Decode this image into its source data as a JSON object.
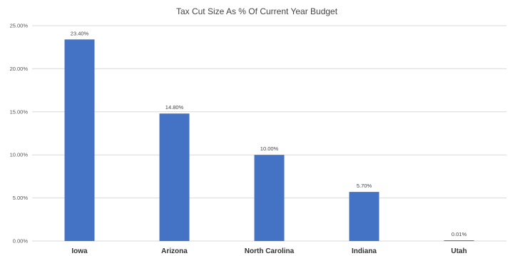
{
  "chart_data": {
    "type": "bar",
    "title": "Tax Cut Size As % Of Current Year Budget",
    "xlabel": "",
    "ylabel": "",
    "categories": [
      "Iowa",
      "Arizona",
      "North Carolina",
      "Indiana",
      "Utah"
    ],
    "values": [
      23.4,
      14.8,
      10.0,
      5.7,
      0.01
    ],
    "value_labels": [
      "23.40%",
      "14.80%",
      "10.00%",
      "5.70%",
      "0.01%"
    ],
    "ylim": [
      0,
      25
    ],
    "y_ticks": [
      0,
      5,
      10,
      15,
      20,
      25
    ],
    "y_tick_labels": [
      "0.00%",
      "5.00%",
      "10.00%",
      "15.00%",
      "20.00%",
      "25.00%"
    ],
    "grid": true,
    "legend": "none",
    "bar_color": "#4472c4"
  }
}
